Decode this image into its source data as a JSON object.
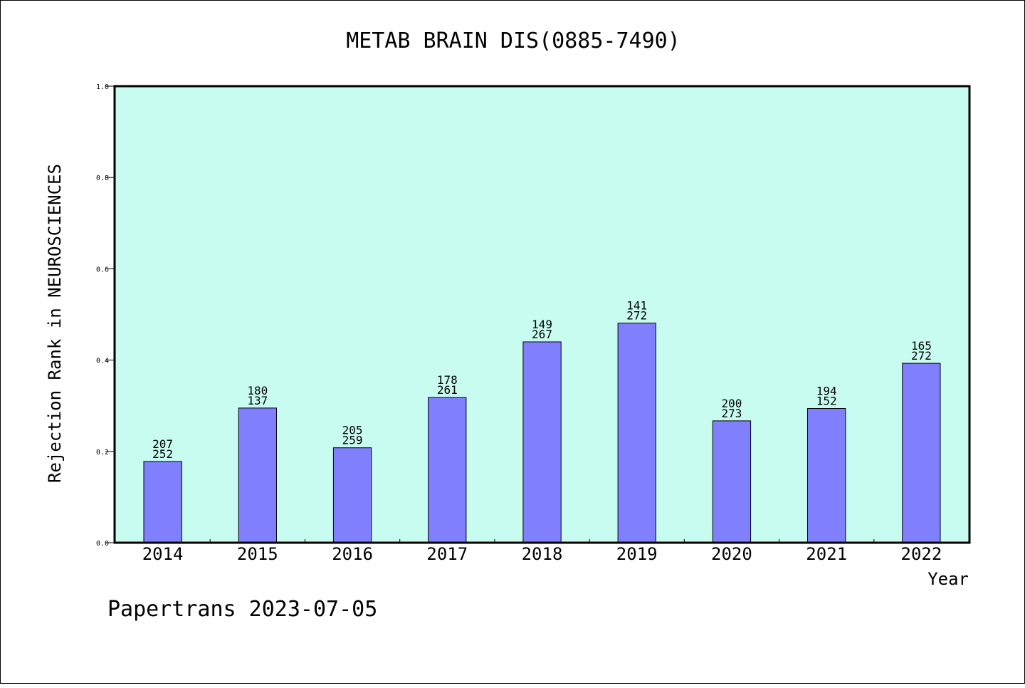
{
  "chart_data": {
    "type": "bar",
    "title": "METAB BRAIN DIS(0885-7490)",
    "xlabel": "Year",
    "ylabel": "Rejection Rank in NEUROSCIENCES",
    "ylim": [
      0.0,
      1.0
    ],
    "yticks": [
      "0.0",
      "0.2",
      "0.4",
      "0.6",
      "0.8",
      "1.0"
    ],
    "categories": [
      "2014",
      "2015",
      "2016",
      "2017",
      "2018",
      "2019",
      "2020",
      "2021",
      "2022"
    ],
    "values": [
      0.178,
      0.295,
      0.208,
      0.318,
      0.44,
      0.481,
      0.267,
      0.294,
      0.393
    ],
    "label_top": [
      "207",
      "180",
      "205",
      "178",
      "149",
      "141",
      "200",
      "194",
      "165"
    ],
    "label_bottom": [
      "252",
      "137",
      "259",
      "261",
      "267",
      "272",
      "273",
      "152",
      "272"
    ],
    "grid": false,
    "colors": {
      "plot_background": "#c8fcf0",
      "bar_fill": "#8080ff",
      "bar_stroke": "#000000",
      "axis": "#000000"
    }
  },
  "footer": {
    "text": "Papertrans 2023-07-05"
  }
}
